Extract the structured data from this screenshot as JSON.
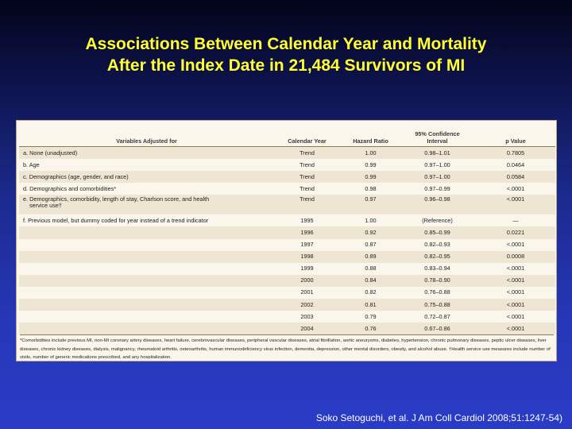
{
  "title": {
    "line1": "Associations Between Calendar Year and Mortality",
    "line2": "After the Index Date in 21,484 Survivors of MI"
  },
  "table": {
    "headers": {
      "variables": "Variables Adjusted for",
      "calendar_year": "Calendar Year",
      "hazard_ratio": "Hazard Ratio",
      "ci_line1": "95% Confidence",
      "ci_line2": "Interval",
      "p_value": "p Value"
    },
    "rows": [
      {
        "variables": "a. None (unadjusted)",
        "year": "Trend",
        "hr": "1.00",
        "ci": "0.98–1.01",
        "p": "0.7805"
      },
      {
        "variables": "b. Age",
        "year": "Trend",
        "hr": "0.99",
        "ci": "0.97–1.00",
        "p": "0.0464"
      },
      {
        "variables": "c. Demographics (age, gender, and race)",
        "year": "Trend",
        "hr": "0.99",
        "ci": "0.97–1.00",
        "p": "0.0584"
      },
      {
        "variables": "d. Demographics and comorbidities*",
        "year": "Trend",
        "hr": "0.98",
        "ci": "0.97–0.99",
        "p": "<.0001"
      },
      {
        "variables": "e. Demographics, comorbidity, length of stay, Charlson score, and health",
        "variables_cont": "service use†",
        "year": "Trend",
        "hr": "0.97",
        "ci": "0.96–0.98",
        "p": "<.0001"
      },
      {
        "variables": "f. Previous model, but dummy coded for year instead of a trend indicator",
        "year": "1995",
        "hr": "1.00",
        "ci": "(Reference)",
        "p": "—"
      },
      {
        "variables": "",
        "year": "1996",
        "hr": "0.92",
        "ci": "0.85–0.99",
        "p": "0.0221"
      },
      {
        "variables": "",
        "year": "1997",
        "hr": "0.87",
        "ci": "0.82–0.93",
        "p": "<.0001"
      },
      {
        "variables": "",
        "year": "1998",
        "hr": "0.89",
        "ci": "0.82–0.95",
        "p": "0.0008"
      },
      {
        "variables": "",
        "year": "1999",
        "hr": "0.88",
        "ci": "0.83–0.94",
        "p": "<.0001"
      },
      {
        "variables": "",
        "year": "2000",
        "hr": "0.84",
        "ci": "0.78–0.90",
        "p": "<.0001"
      },
      {
        "variables": "",
        "year": "2001",
        "hr": "0.82",
        "ci": "0.76–0.88",
        "p": "<.0001"
      },
      {
        "variables": "",
        "year": "2002",
        "hr": "0.81",
        "ci": "0.75–0.88",
        "p": "<.0001"
      },
      {
        "variables": "",
        "year": "2003",
        "hr": "0.79",
        "ci": "0.72–0.87",
        "p": "<.0001"
      },
      {
        "variables": "",
        "year": "2004",
        "hr": "0.76",
        "ci": "0.67–0.86",
        "p": "<.0001"
      }
    ],
    "footnote": "*Comorbidities include previous MI, non-MI coronary artery diseases, heart failure, cerebrovascular diseases, peripheral vascular diseases, atrial fibrillation, aortic aneurysms, diabetes, hypertension, chronic pulmonary diseases, peptic ulcer diseases, liver diseases, chronic kidney diseases, dialysis, malignancy, rheumatoid arthritis, osteoarthritis, human immunodeficiency virus infection, dementia, depression, other mental disorders, obesity, and alcohol abuse. †Health service use measures include number of visits, number of generic medications prescribed, and any hospitalization."
  },
  "citation": "Soko Setoguchi, et al. J Am Coll Cardiol 2008;51:1247-54)",
  "colors": {
    "title": "#ffff33",
    "background_top": "#030418",
    "background_bottom": "#2a3cc6",
    "table_background": "#fbf6ec",
    "row_shade": "#eee6d3"
  }
}
